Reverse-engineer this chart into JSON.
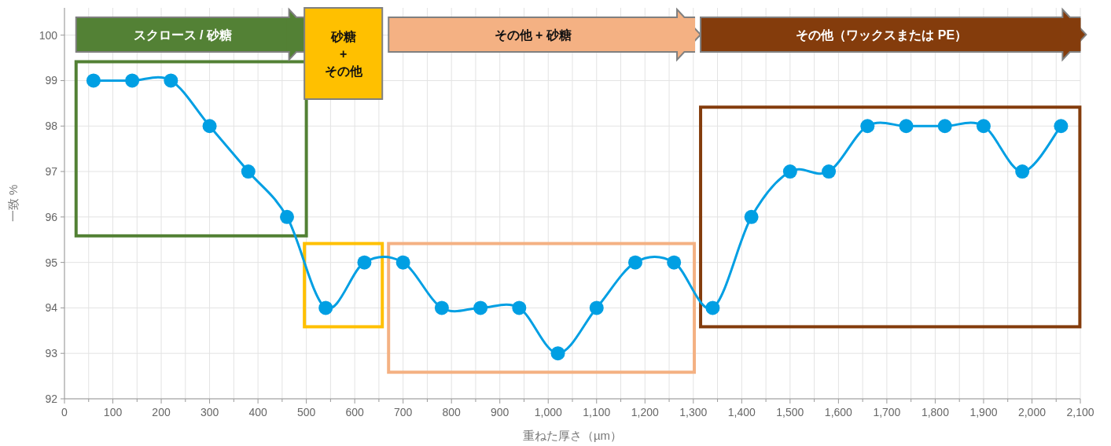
{
  "chart_data": {
    "type": "line",
    "xlabel": "重ねた厚さ（µm）",
    "ylabel": "一致 %",
    "x": [
      60,
      140,
      220,
      300,
      380,
      460,
      540,
      620,
      700,
      780,
      860,
      940,
      1020,
      1100,
      1180,
      1260,
      1340,
      1420,
      1500,
      1580,
      1660,
      1740,
      1820,
      1900,
      1980,
      2060
    ],
    "values": [
      99,
      99,
      99,
      98,
      97,
      96,
      94,
      95,
      95,
      94,
      94,
      94,
      93,
      94,
      95,
      95,
      94,
      96,
      97,
      97,
      98,
      98,
      98,
      98,
      97,
      98
    ],
    "color": "#009fe3",
    "marker": "circle",
    "line_style": "solid",
    "grid": true,
    "xlim": [
      0,
      2100
    ],
    "ylim": [
      92,
      100.6
    ],
    "xticks": [
      0,
      100,
      200,
      300,
      400,
      500,
      600,
      700,
      800,
      900,
      {
        "value": 1000,
        "label": "1,000"
      },
      {
        "value": 1100,
        "label": "1,100"
      },
      {
        "value": 1200,
        "label": "1,200"
      },
      {
        "value": 1300,
        "label": "1,300"
      },
      {
        "value": 1400,
        "label": "1,400"
      },
      {
        "value": 1500,
        "label": "1,500"
      },
      {
        "value": 1600,
        "label": "1,600"
      },
      {
        "value": 1700,
        "label": "1,700"
      },
      {
        "value": 1800,
        "label": "1,800"
      },
      {
        "value": 1900,
        "label": "1,900"
      },
      {
        "value": 2000,
        "label": "2,000"
      },
      {
        "value": 2100,
        "label": "2,100"
      }
    ],
    "yticks": [
      92,
      93,
      94,
      95,
      96,
      97,
      98,
      99,
      100
    ],
    "bands": [
      {
        "axis": "x",
        "from": 24,
        "to": 500,
        "label": "スクロース / 砂糖",
        "color": "#538135"
      },
      {
        "axis": "x",
        "from": 496,
        "to": 657,
        "label": "砂糖 + その他",
        "color": "#ffc000"
      },
      {
        "axis": "x",
        "from": 670,
        "to": 1302,
        "label": "その他 + 砂糖",
        "color": "#f4b183"
      },
      {
        "axis": "x",
        "from": 1315,
        "to": 2099,
        "label": "その他（ワックスまたは PE）",
        "color": "#843c0c"
      }
    ]
  }
}
